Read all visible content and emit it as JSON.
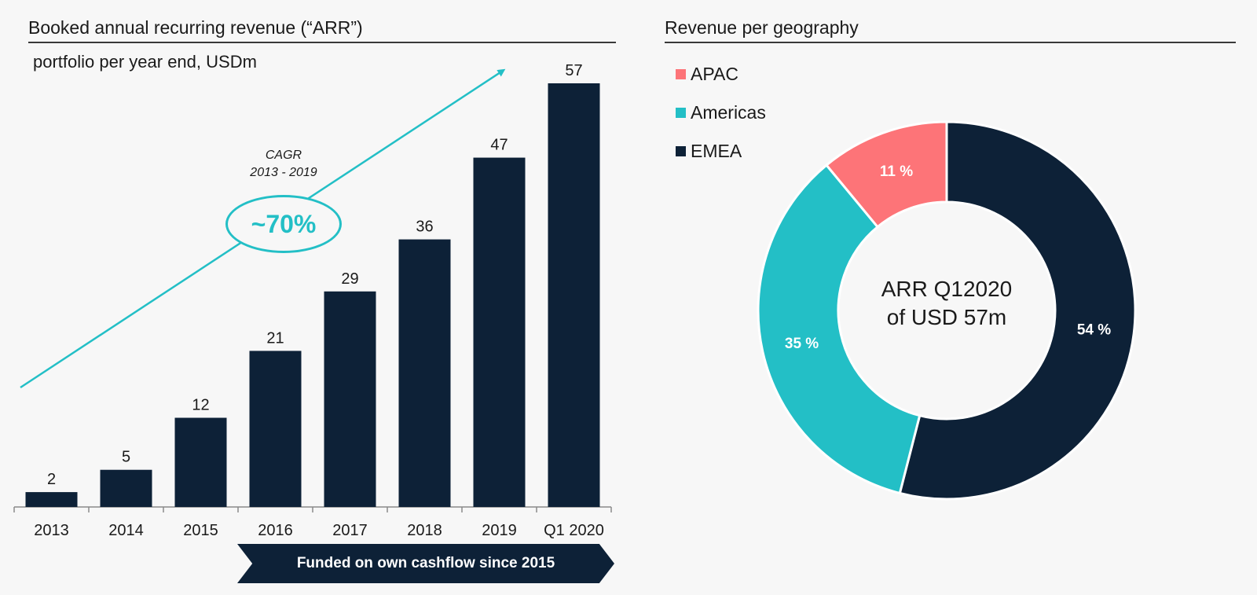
{
  "left_panel": {
    "title": "Booked annual recurring revenue (“ARR”)",
    "subtitle": "portfolio per year end, USDm",
    "cagr_label_line1": "CAGR",
    "cagr_label_line2": "2013 - 2019",
    "cagr_value": "~70%",
    "banner": "Funded on own cashflow since 2015"
  },
  "right_panel": {
    "title": "Revenue per geography",
    "center_line1": "ARR Q12020",
    "center_line2": "of USD 57m"
  },
  "chart_data": [
    {
      "type": "bar",
      "title": "Booked annual recurring revenue (“ARR”)",
      "subtitle": "portfolio per year end, USDm",
      "categories": [
        "2013",
        "2014",
        "2015",
        "2016",
        "2017",
        "2018",
        "2019",
        "Q1 2020"
      ],
      "values": [
        2,
        5,
        12,
        21,
        29,
        36,
        47,
        57
      ],
      "data_labels": [
        "2",
        "5",
        "12",
        "21",
        "29",
        "36",
        "47",
        "57"
      ],
      "ylim": [
        0,
        57
      ],
      "grid": false,
      "color": "#0d2137",
      "annotation": "CAGR 2013 - 2019 ~70%"
    },
    {
      "type": "pie",
      "title": "Revenue per geography",
      "donut": true,
      "slices": [
        {
          "name": "EMEA",
          "value": 54,
          "label": "54 %",
          "color": "#0d2137"
        },
        {
          "name": "Americas",
          "value": 35,
          "label": "35 %",
          "color": "#23bfc6"
        },
        {
          "name": "APAC",
          "value": 11,
          "label": "11 %",
          "color": "#fd7478"
        }
      ],
      "legend": [
        {
          "name": "APAC",
          "color": "#fd7478"
        },
        {
          "name": "Americas",
          "color": "#23bfc6"
        },
        {
          "name": "EMEA",
          "color": "#0d2137"
        }
      ],
      "legend_position": "top-left"
    }
  ]
}
